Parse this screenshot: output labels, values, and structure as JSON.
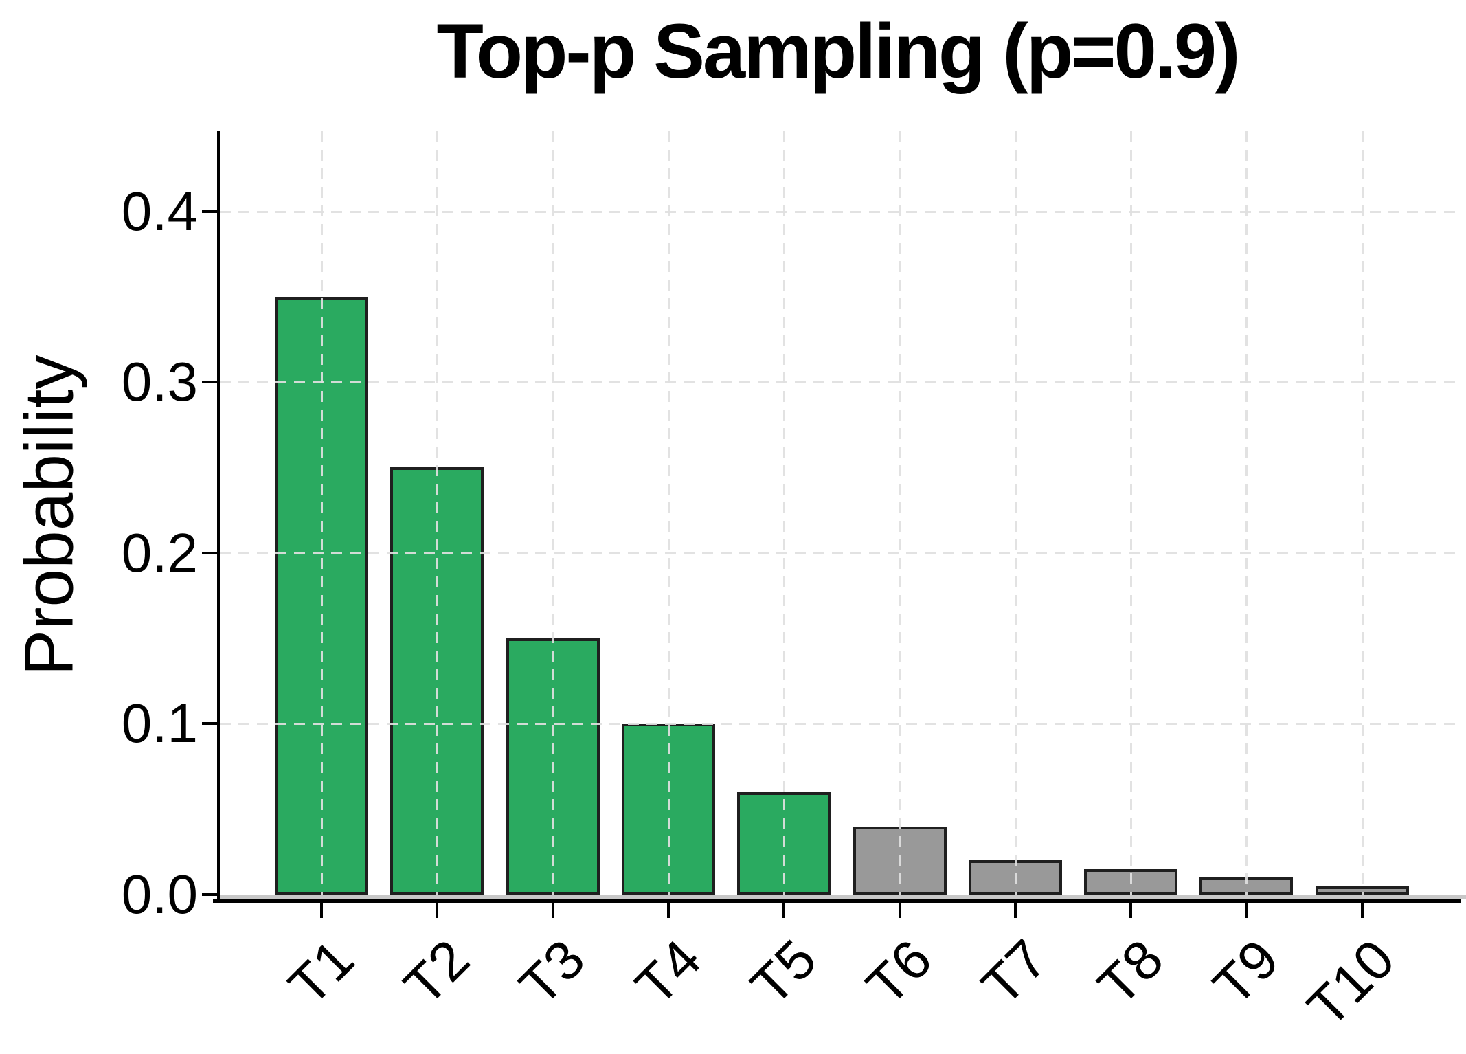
{
  "title": "Top-p Sampling (p=0.9)",
  "chart_data": {
    "type": "bar",
    "title": "Top-p Sampling (p=0.9)",
    "xlabel": "",
    "ylabel": "Probability",
    "categories": [
      "T1",
      "T2",
      "T3",
      "T4",
      "T5",
      "T6",
      "T7",
      "T8",
      "T9",
      "T10"
    ],
    "values": [
      0.35,
      0.25,
      0.15,
      0.1,
      0.06,
      0.04,
      0.02,
      0.015,
      0.01,
      0.005
    ],
    "bar_in_nucleus": [
      true,
      true,
      true,
      true,
      true,
      false,
      false,
      false,
      false,
      false
    ],
    "nucleus_p_threshold": 0.9,
    "nucleus_token_count": 5,
    "ylim": [
      0,
      0.45
    ],
    "ytick_values": [
      0.0,
      0.1,
      0.2,
      0.3,
      0.4
    ],
    "ytick_labels": [
      "0.0",
      "0.1",
      "0.2",
      "0.3",
      "0.4"
    ],
    "grid": "dashed, both axes, drawn over bars",
    "legend_position": "none",
    "colors": {
      "nucleus_bar": "#2aaa60",
      "excluded_bar": "#999999",
      "bar_edge": "#1f1f1f",
      "gridline": "#e0e0e0",
      "baseline_band": "#c8c8c8",
      "spine": "#000000",
      "text": "#000000",
      "background": "#ffffff"
    }
  }
}
